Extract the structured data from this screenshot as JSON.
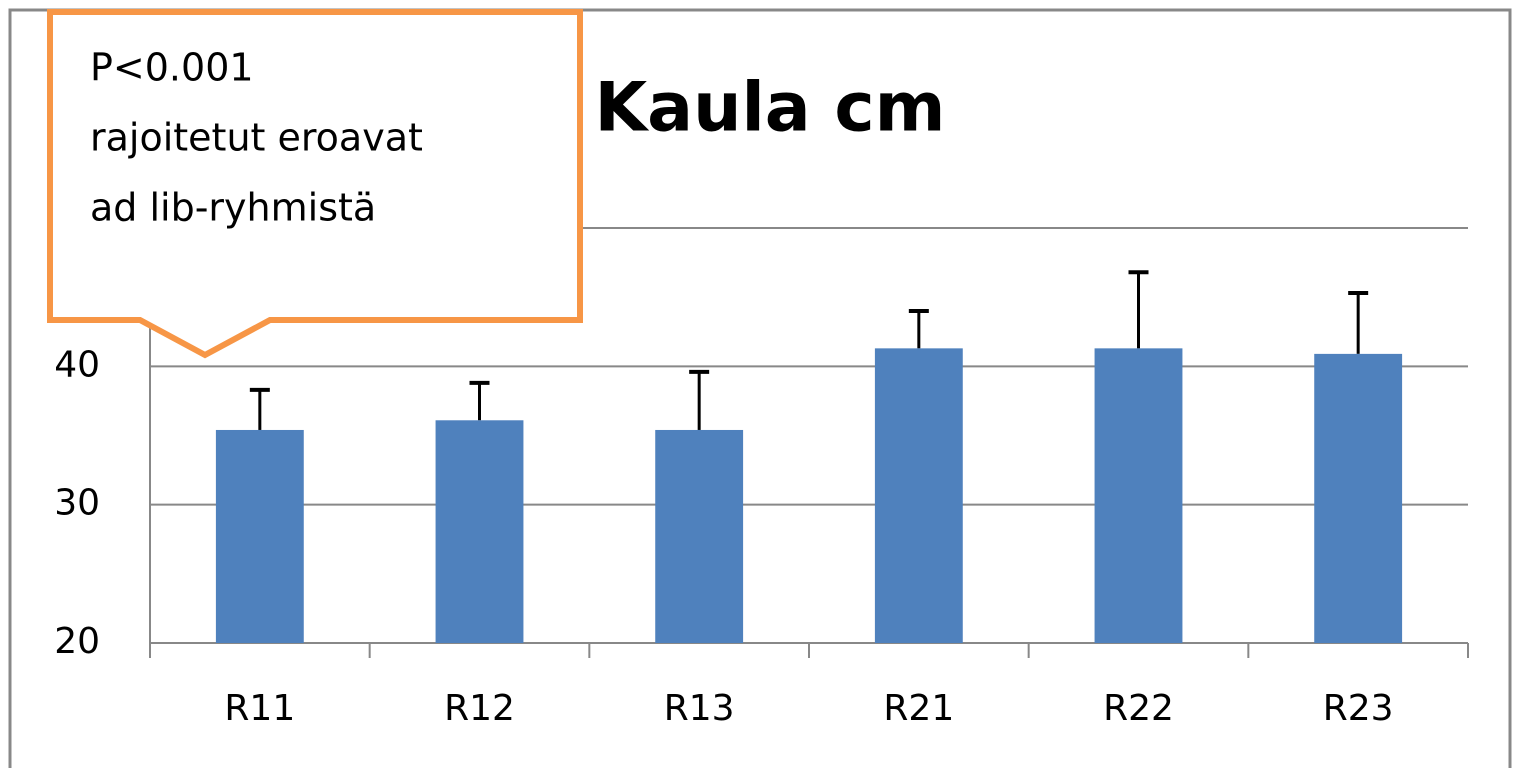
{
  "chart_data": {
    "type": "bar",
    "title": "Kaula cm",
    "annotation": [
      "P<0.001",
      "rajoitetut eroavat",
      "ad lib-ryhmistä"
    ],
    "categories": [
      "R11",
      "R12",
      "R13",
      "R21",
      "R22",
      "R23"
    ],
    "values": [
      35.4,
      36.1,
      35.4,
      41.3,
      41.3,
      40.9
    ],
    "errors": [
      2.9,
      2.7,
      4.2,
      2.7,
      5.5,
      4.4
    ],
    "color": "#4f81bd",
    "ylim": [
      20,
      50
    ],
    "yticks": [
      20,
      30,
      40,
      50
    ],
    "grid": true
  }
}
